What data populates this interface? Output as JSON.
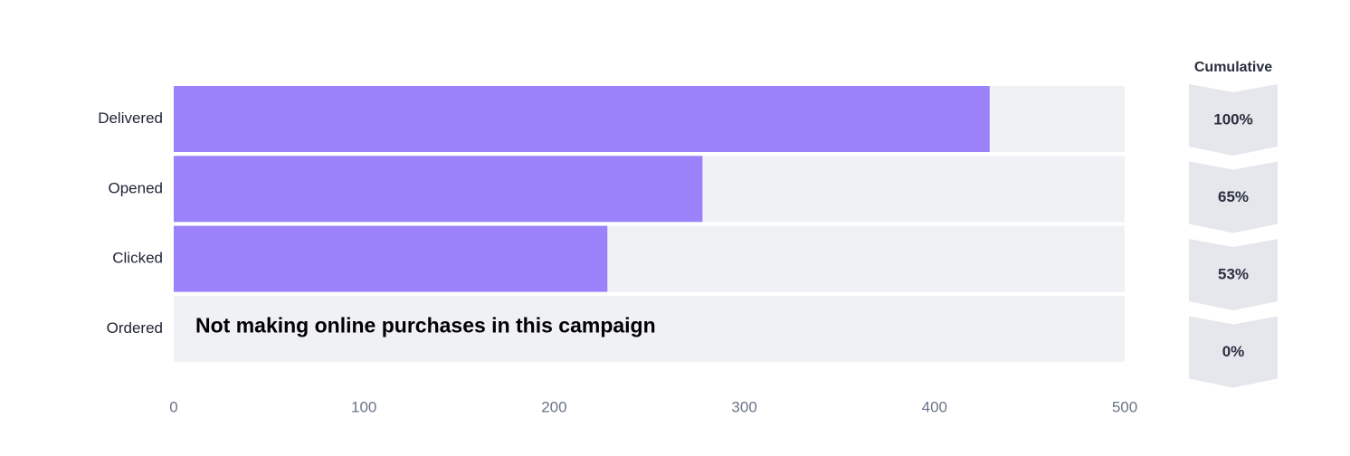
{
  "chart_data": {
    "type": "funnel-bar",
    "categories": [
      "Delivered",
      "Opened",
      "Clicked",
      "Ordered"
    ],
    "values": [
      429,
      278,
      228,
      0
    ],
    "color": "#9b82fb",
    "track_color": "#f0f1f5",
    "xlim": [
      0,
      500
    ],
    "xticks": [
      0,
      100,
      200,
      300,
      400,
      500
    ],
    "annotation": "Not making online purchases in this campaign",
    "cumulative": {
      "title": "Cumulative",
      "values": [
        100,
        65,
        53,
        0
      ],
      "value_labels": [
        "100%",
        "65%",
        "53%",
        "0%"
      ],
      "color": "#e6e7ec"
    }
  }
}
